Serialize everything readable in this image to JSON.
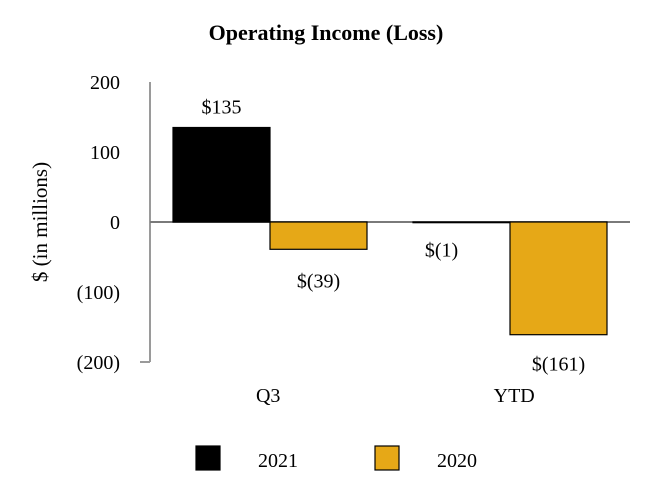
{
  "chart_data": {
    "type": "bar",
    "title": "Operating Income (Loss)",
    "xlabel": "",
    "ylabel": "$ (in millions)",
    "categories": [
      "Q3",
      "YTD"
    ],
    "series": [
      {
        "name": "2021",
        "values": [
          135,
          -1
        ],
        "labels": [
          "$135",
          "$(1)"
        ],
        "color": "#000000"
      },
      {
        "name": "2020",
        "values": [
          -39,
          -161
        ],
        "labels": [
          "$(39)",
          "$(161)"
        ],
        "color": "#E6A817"
      }
    ],
    "ylim": [
      -200,
      200
    ],
    "yticks": [
      200,
      100,
      0,
      -100,
      -200
    ],
    "ytick_labels": [
      "200",
      "100",
      "0",
      "(100)",
      "(200)"
    ],
    "grid": false,
    "legend_position": "bottom"
  }
}
